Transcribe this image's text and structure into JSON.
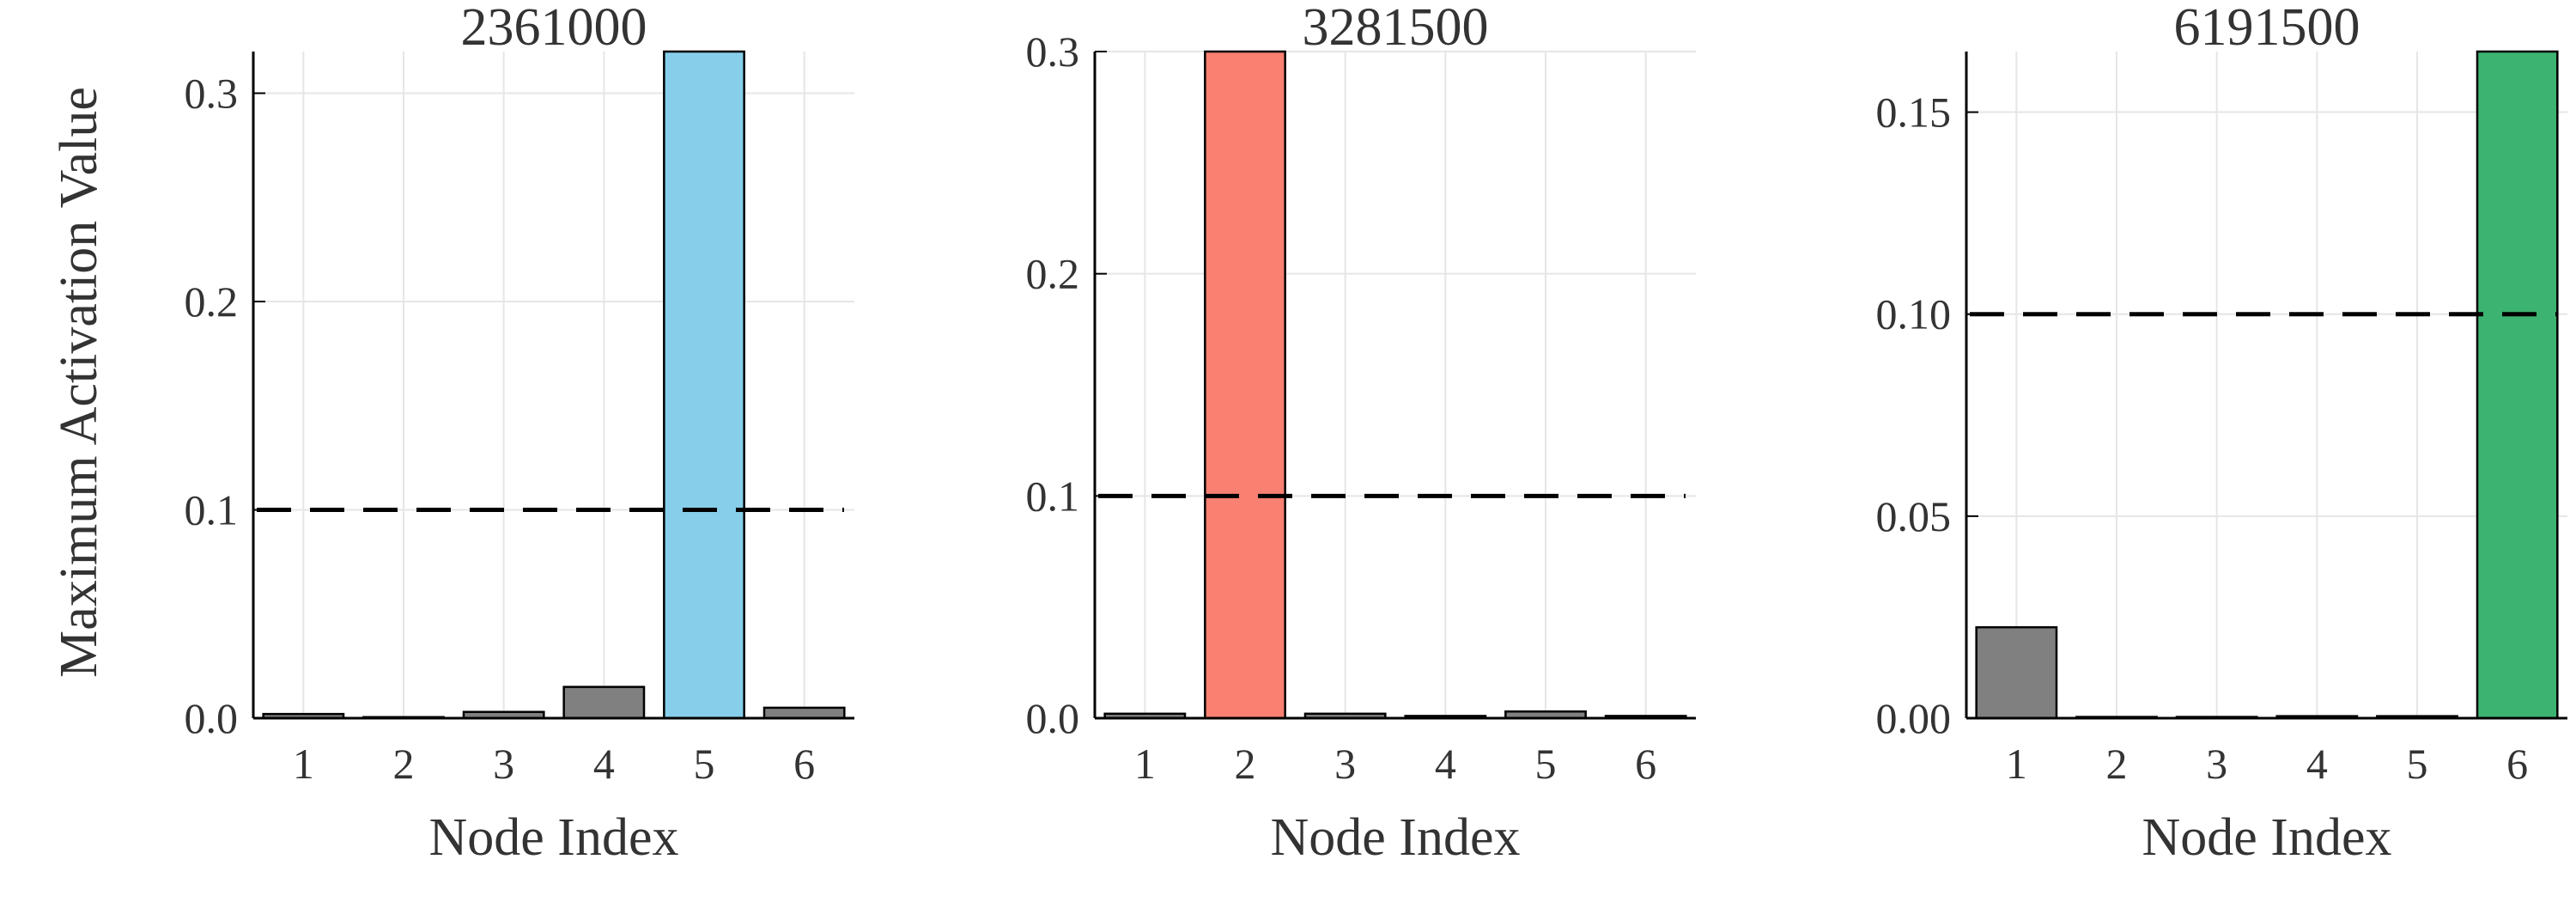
{
  "figure": {
    "shared_ylabel": "Maximum Activation Value"
  },
  "chart_data": [
    {
      "type": "bar",
      "title": "2361000",
      "xlabel": "Node Index",
      "ylabel": "Maximum Activation Value",
      "categories": [
        "1",
        "2",
        "3",
        "4",
        "5",
        "6"
      ],
      "values": [
        0.002,
        0.0005,
        0.003,
        0.015,
        0.32,
        0.005
      ],
      "highlight_index": 4,
      "highlight_color": "#87ceeb",
      "base_color": "#808080",
      "threshold": 0.1,
      "ylim": [
        0,
        0.32
      ],
      "yticks": [
        0.0,
        0.1,
        0.2,
        0.3
      ],
      "ytick_labels": [
        "0.0",
        "0.1",
        "0.2",
        "0.3"
      ],
      "grid": true
    },
    {
      "type": "bar",
      "title": "3281500",
      "xlabel": "Node Index",
      "ylabel": "",
      "categories": [
        "1",
        "2",
        "3",
        "4",
        "5",
        "6"
      ],
      "values": [
        0.002,
        0.3,
        0.002,
        0.001,
        0.003,
        0.001
      ],
      "highlight_index": 1,
      "highlight_color": "#fa8072",
      "base_color": "#808080",
      "threshold": 0.1,
      "ylim": [
        0,
        0.3
      ],
      "yticks": [
        0.0,
        0.1,
        0.2,
        0.3
      ],
      "ytick_labels": [
        "0.0",
        "0.1",
        "0.2",
        "0.3"
      ],
      "grid": true
    },
    {
      "type": "bar",
      "title": "6191500",
      "xlabel": "Node Index",
      "ylabel": "",
      "categories": [
        "1",
        "2",
        "3",
        "4",
        "5",
        "6"
      ],
      "values": [
        0.0225,
        0.0003,
        0.0003,
        0.0005,
        0.0005,
        0.165
      ],
      "highlight_index": 5,
      "highlight_color": "#3cb371",
      "base_color": "#808080",
      "threshold": 0.1,
      "ylim": [
        0,
        0.165
      ],
      "yticks": [
        0.0,
        0.05,
        0.1,
        0.15
      ],
      "ytick_labels": [
        "0.00",
        "0.05",
        "0.10",
        "0.15"
      ],
      "grid": true
    }
  ]
}
